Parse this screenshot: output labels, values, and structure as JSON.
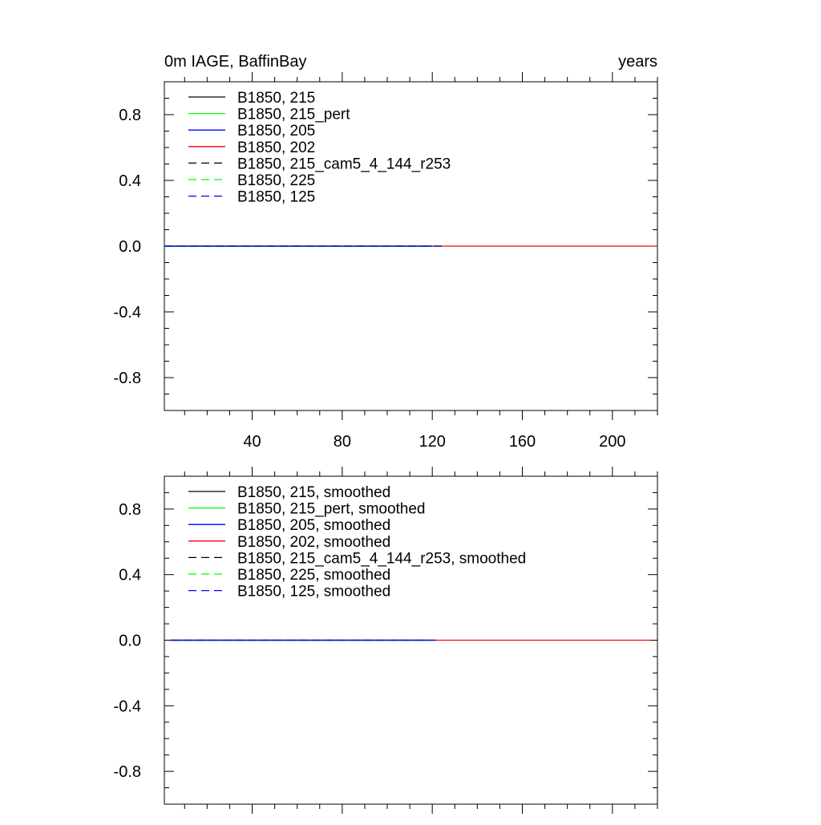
{
  "chart_data": [
    {
      "type": "line",
      "title": "0m IAGE, BaffinBay",
      "title_right": "years",
      "xlabel": "",
      "ylabel": "",
      "xlim": [
        1,
        220
      ],
      "ylim": [
        -1,
        1
      ],
      "x_ticks": [
        40,
        80,
        120,
        160,
        200
      ],
      "x_tick_labels": [
        "40",
        "80",
        "120",
        "160",
        "200"
      ],
      "y_ticks": [
        0.8,
        0.4,
        0.0,
        -0.4,
        -0.8
      ],
      "y_tick_labels": [
        "0.8",
        "0.4",
        "0.0",
        "-0.4",
        "-0.8"
      ],
      "grid": false,
      "legend_position": "top-left",
      "series": [
        {
          "name": "B1850, 215",
          "color": "#000000",
          "dash": "solid",
          "x": [
            1,
            120
          ],
          "y": [
            0,
            0
          ]
        },
        {
          "name": "B1850, 215_pert",
          "color": "#00ff00",
          "dash": "solid",
          "x": [
            1,
            120
          ],
          "y": [
            0,
            0
          ]
        },
        {
          "name": "B1850, 205",
          "color": "#0000ff",
          "dash": "solid",
          "x": [
            1,
            120
          ],
          "y": [
            0,
            0
          ]
        },
        {
          "name": "B1850, 202",
          "color": "#ff0000",
          "dash": "solid",
          "x": [
            1,
            220
          ],
          "y": [
            0,
            0
          ]
        },
        {
          "name": "B1850, 215_cam5_4_144_r253",
          "color": "#000000",
          "dash": "dashed",
          "x": [
            1,
            126
          ],
          "y": [
            0,
            0
          ]
        },
        {
          "name": "B1850, 225",
          "color": "#00ff00",
          "dash": "dashed",
          "x": [
            1,
            126
          ],
          "y": [
            0,
            0
          ]
        },
        {
          "name": "B1850, 125",
          "color": "#0000ff",
          "dash": "dashed",
          "x": [
            1,
            126
          ],
          "y": [
            0,
            0
          ]
        }
      ]
    },
    {
      "type": "line",
      "title": "",
      "xlabel": "",
      "ylabel": "",
      "xlim": [
        1,
        220
      ],
      "ylim": [
        -1,
        1
      ],
      "x_ticks": [
        40,
        80,
        120,
        160,
        200
      ],
      "x_tick_labels": [],
      "y_ticks": [
        0.8,
        0.4,
        0.0,
        -0.4,
        -0.8
      ],
      "y_tick_labels": [
        "0.8",
        "0.4",
        "0.0",
        "-0.4",
        "-0.8"
      ],
      "grid": false,
      "legend_position": "top-left",
      "series": [
        {
          "name": "B1850, 215, smoothed",
          "color": "#000000",
          "dash": "solid",
          "x": [
            4,
            118
          ],
          "y": [
            0,
            0
          ]
        },
        {
          "name": "B1850, 215_pert, smoothed",
          "color": "#00ff00",
          "dash": "solid",
          "x": [
            4,
            118
          ],
          "y": [
            0,
            0
          ]
        },
        {
          "name": "B1850, 205, smoothed",
          "color": "#0000ff",
          "dash": "solid",
          "x": [
            4,
            118
          ],
          "y": [
            0,
            0
          ]
        },
        {
          "name": "B1850, 202, smoothed",
          "color": "#ff0000",
          "dash": "solid",
          "x": [
            4,
            217
          ],
          "y": [
            0,
            0
          ]
        },
        {
          "name": "B1850, 215_cam5_4_144_r253, smoothed",
          "color": "#000000",
          "dash": "dashed",
          "x": [
            4,
            123
          ],
          "y": [
            0,
            0
          ]
        },
        {
          "name": "B1850, 225, smoothed",
          "color": "#00ff00",
          "dash": "dashed",
          "x": [
            4,
            123
          ],
          "y": [
            0,
            0
          ]
        },
        {
          "name": "B1850, 125, smoothed",
          "color": "#0000ff",
          "dash": "dashed",
          "x": [
            4,
            123
          ],
          "y": [
            0,
            0
          ]
        }
      ]
    }
  ]
}
